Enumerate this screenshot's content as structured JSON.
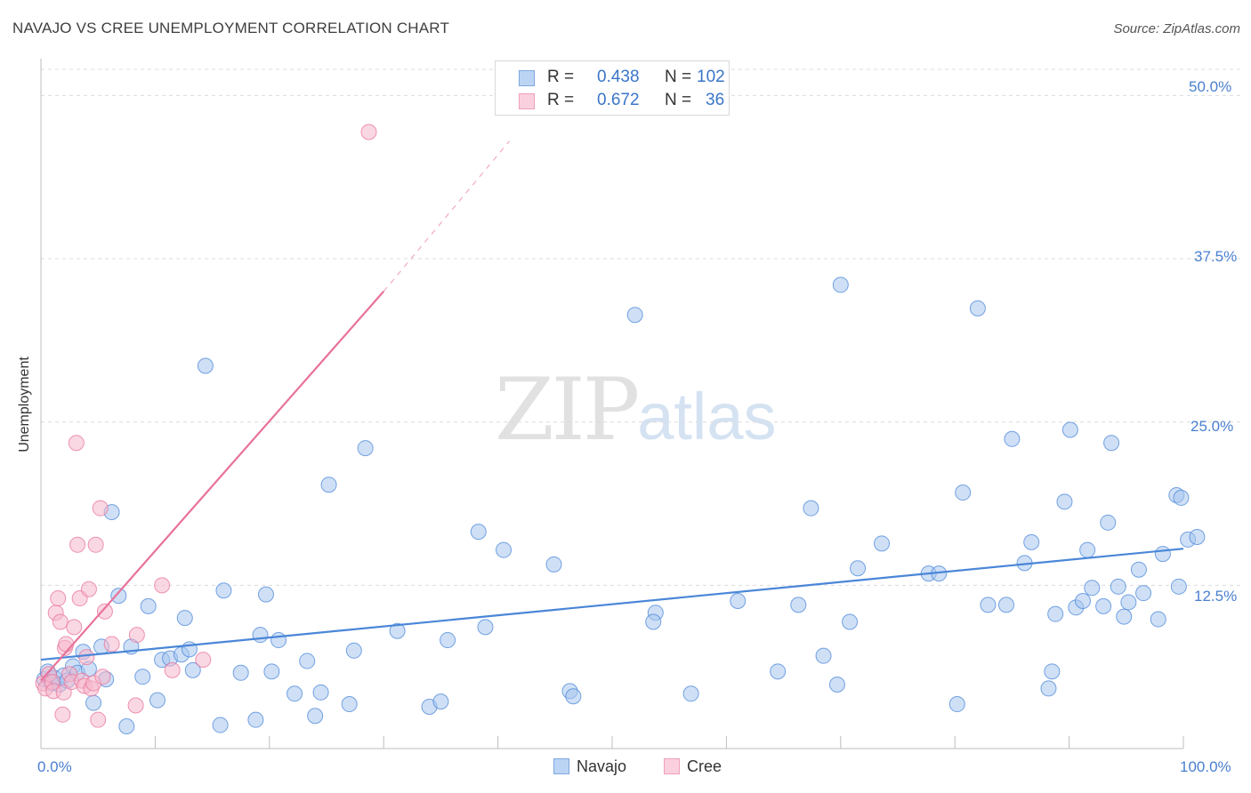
{
  "title": "NAVAJO VS CREE UNEMPLOYMENT CORRELATION CHART",
  "source": "Source: ZipAtlas.com",
  "watermark": {
    "zip": "ZIP",
    "atlas": "atlas"
  },
  "legend": {
    "r_label": "R =",
    "n_label": "N =",
    "rows": [
      {
        "name": "Navajo",
        "r": "0.438",
        "n": "102",
        "color": "#a8c6ee"
      },
      {
        "name": "Cree",
        "r": "0.672",
        "n": "36",
        "color": "#f6b8cc"
      }
    ]
  },
  "chart_data": {
    "type": "scatter",
    "title": "NAVAJO VS CREE UNEMPLOYMENT CORRELATION CHART",
    "xlabel": "",
    "ylabel": "Unemployment",
    "xlim": [
      0,
      100
    ],
    "ylim": [
      0,
      52
    ],
    "x_tick_labels": [
      "0.0%",
      "100.0%"
    ],
    "y_ticks": [
      12.5,
      25.0,
      37.5,
      50.0
    ],
    "y_tick_labels": [
      "12.5%",
      "25.0%",
      "37.5%",
      "50.0%"
    ],
    "grid": true,
    "legend_position": "bottom-center",
    "series": [
      {
        "name": "Navajo",
        "color": "#4a86d8",
        "fill": "#a8c6ee",
        "trend": {
          "x0": 0,
          "y0": 6.8,
          "x1": 100,
          "y1": 15.3
        },
        "points": [
          [
            0.3,
            5.3
          ],
          [
            0.6,
            5.9
          ],
          [
            0.9,
            5.0
          ],
          [
            1.2,
            5.4
          ],
          [
            1.6,
            4.9
          ],
          [
            2.0,
            5.6
          ],
          [
            2.3,
            5.2
          ],
          [
            2.8,
            6.3
          ],
          [
            3.2,
            5.8
          ],
          [
            3.7,
            7.4
          ],
          [
            4.2,
            6.1
          ],
          [
            4.6,
            3.5
          ],
          [
            5.3,
            7.8
          ],
          [
            5.7,
            5.3
          ],
          [
            6.2,
            18.1
          ],
          [
            6.8,
            11.7
          ],
          [
            7.5,
            1.7
          ],
          [
            7.9,
            7.8
          ],
          [
            8.9,
            5.5
          ],
          [
            9.4,
            10.9
          ],
          [
            10.2,
            3.7
          ],
          [
            10.6,
            6.8
          ],
          [
            11.3,
            6.9
          ],
          [
            12.3,
            7.2
          ],
          [
            12.6,
            10.0
          ],
          [
            13.0,
            7.6
          ],
          [
            13.3,
            6.0
          ],
          [
            14.4,
            29.3
          ],
          [
            15.7,
            1.8
          ],
          [
            16.0,
            12.1
          ],
          [
            17.5,
            5.8
          ],
          [
            18.8,
            2.2
          ],
          [
            19.2,
            8.7
          ],
          [
            19.7,
            11.8
          ],
          [
            20.2,
            5.9
          ],
          [
            20.8,
            8.3
          ],
          [
            22.2,
            4.2
          ],
          [
            23.3,
            6.7
          ],
          [
            24.0,
            2.5
          ],
          [
            24.5,
            4.3
          ],
          [
            25.2,
            20.2
          ],
          [
            27.0,
            3.4
          ],
          [
            27.4,
            7.5
          ],
          [
            28.4,
            23.0
          ],
          [
            31.2,
            9.0
          ],
          [
            34.0,
            3.2
          ],
          [
            35.0,
            3.6
          ],
          [
            35.6,
            8.3
          ],
          [
            38.3,
            16.6
          ],
          [
            38.9,
            9.3
          ],
          [
            40.5,
            15.2
          ],
          [
            44.9,
            14.1
          ],
          [
            46.3,
            4.4
          ],
          [
            46.6,
            4.0
          ],
          [
            52.0,
            33.2
          ],
          [
            53.8,
            10.4
          ],
          [
            53.6,
            9.7
          ],
          [
            56.9,
            4.2
          ],
          [
            61.0,
            11.3
          ],
          [
            64.5,
            5.9
          ],
          [
            66.3,
            11.0
          ],
          [
            67.4,
            18.4
          ],
          [
            68.5,
            7.1
          ],
          [
            69.7,
            4.9
          ],
          [
            70.0,
            35.5
          ],
          [
            70.8,
            9.7
          ],
          [
            71.5,
            13.8
          ],
          [
            73.6,
            15.7
          ],
          [
            77.7,
            13.4
          ],
          [
            78.6,
            13.4
          ],
          [
            80.2,
            3.4
          ],
          [
            80.7,
            19.6
          ],
          [
            82.0,
            33.7
          ],
          [
            82.9,
            11.0
          ],
          [
            84.5,
            11.0
          ],
          [
            85.0,
            23.7
          ],
          [
            86.1,
            14.2
          ],
          [
            86.7,
            15.8
          ],
          [
            88.2,
            4.6
          ],
          [
            88.5,
            5.9
          ],
          [
            88.8,
            10.3
          ],
          [
            89.6,
            18.9
          ],
          [
            90.1,
            24.4
          ],
          [
            90.6,
            10.8
          ],
          [
            91.2,
            11.3
          ],
          [
            91.6,
            15.2
          ],
          [
            92.0,
            12.3
          ],
          [
            93.0,
            10.9
          ],
          [
            93.4,
            17.3
          ],
          [
            93.7,
            23.4
          ],
          [
            94.3,
            12.4
          ],
          [
            94.8,
            10.1
          ],
          [
            95.2,
            11.2
          ],
          [
            96.1,
            13.7
          ],
          [
            96.5,
            11.9
          ],
          [
            97.8,
            9.9
          ],
          [
            98.2,
            14.9
          ],
          [
            99.4,
            19.4
          ],
          [
            99.6,
            12.4
          ],
          [
            99.8,
            19.2
          ],
          [
            100.4,
            16.0
          ],
          [
            101.2,
            16.2
          ]
        ]
      },
      {
        "name": "Cree",
        "color": "#e8729a",
        "fill": "#f6b8cc",
        "trend": {
          "x0": 0,
          "y0": 5.2,
          "x1": 30,
          "y1": 35.0,
          "dash_to": {
            "x": 41,
            "y": 46.5
          }
        },
        "points": [
          [
            0.2,
            5.0
          ],
          [
            0.4,
            4.6
          ],
          [
            0.7,
            5.7
          ],
          [
            1.0,
            5.1
          ],
          [
            1.1,
            4.4
          ],
          [
            1.3,
            10.4
          ],
          [
            1.5,
            11.5
          ],
          [
            1.7,
            9.7
          ],
          [
            1.9,
            2.6
          ],
          [
            2.0,
            4.3
          ],
          [
            2.1,
            7.7
          ],
          [
            2.2,
            8.0
          ],
          [
            2.5,
            5.7
          ],
          [
            2.7,
            5.1
          ],
          [
            2.9,
            9.3
          ],
          [
            3.1,
            23.4
          ],
          [
            3.2,
            15.6
          ],
          [
            3.4,
            11.5
          ],
          [
            3.6,
            5.2
          ],
          [
            3.8,
            4.8
          ],
          [
            4.0,
            7.0
          ],
          [
            4.2,
            12.2
          ],
          [
            4.4,
            4.6
          ],
          [
            4.6,
            5.0
          ],
          [
            4.8,
            15.6
          ],
          [
            5.0,
            2.2
          ],
          [
            5.2,
            18.4
          ],
          [
            5.4,
            5.5
          ],
          [
            5.6,
            10.5
          ],
          [
            6.2,
            8.0
          ],
          [
            8.3,
            3.3
          ],
          [
            8.4,
            8.7
          ],
          [
            10.6,
            12.5
          ],
          [
            11.5,
            6.0
          ],
          [
            14.2,
            6.8
          ],
          [
            28.7,
            47.2
          ]
        ]
      }
    ]
  }
}
